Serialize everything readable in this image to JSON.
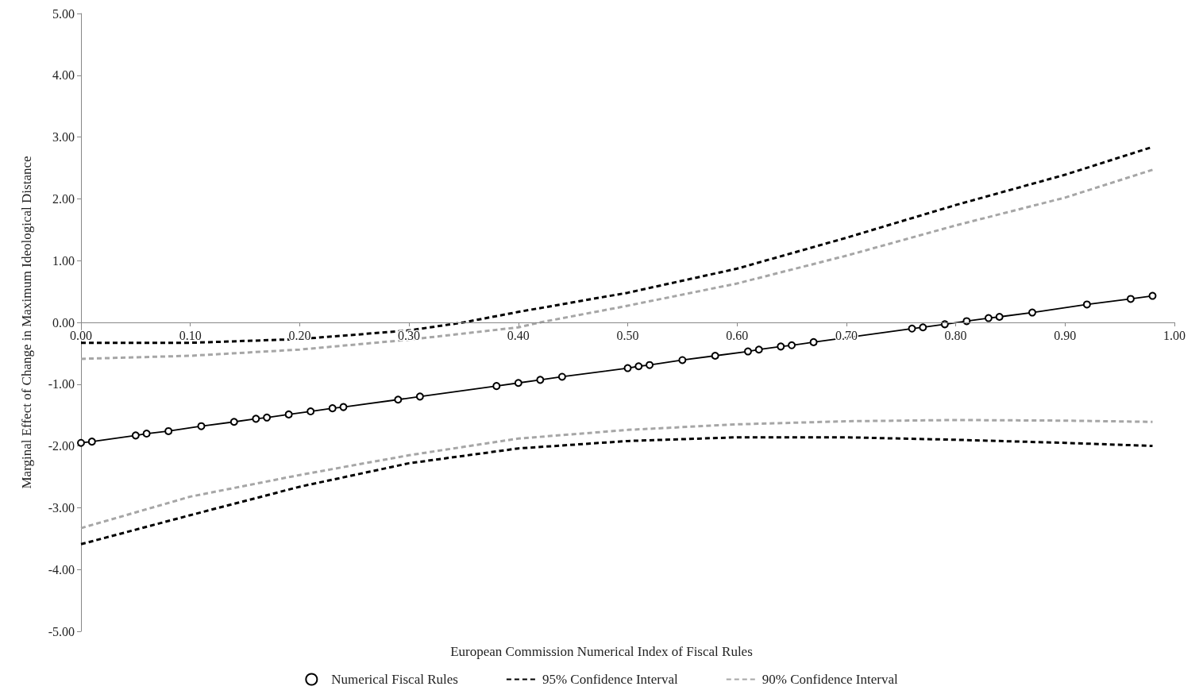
{
  "chart_data": {
    "type": "line",
    "xlabel": "European Commission Numerical Index of Fiscal Rules",
    "ylabel": "Marginal Effect of Change in Maximum Ideological Distance",
    "xlim": [
      0,
      1
    ],
    "xticks": [
      {
        "value": 0,
        "label": "0.00"
      },
      {
        "value": 0.1,
        "label": "0.10"
      },
      {
        "value": 0.2,
        "label": "0.20"
      },
      {
        "value": 0.3,
        "label": "0.30"
      },
      {
        "value": 0.4,
        "label": "0.40"
      },
      {
        "value": 0.5,
        "label": "0.50"
      },
      {
        "value": 0.6,
        "label": "0.60"
      },
      {
        "value": 0.7,
        "label": "0.70"
      },
      {
        "value": 0.8,
        "label": "0.80"
      },
      {
        "value": 0.9,
        "label": "0.90"
      },
      {
        "value": 1,
        "label": "1.00"
      }
    ],
    "ylim": [
      -5,
      5
    ],
    "yticks": [
      {
        "value": -5,
        "label": "-5.00"
      },
      {
        "value": -4,
        "label": "-4.00"
      },
      {
        "value": -3,
        "label": "-3.00"
      },
      {
        "value": -2,
        "label": "-2.00"
      },
      {
        "value": -1,
        "label": "-1.00"
      },
      {
        "value": 0,
        "label": "0.00"
      },
      {
        "value": 1,
        "label": "1.00"
      },
      {
        "value": 2,
        "label": "2.00"
      },
      {
        "value": 3,
        "label": "3.00"
      },
      {
        "value": 4,
        "label": "4.00"
      },
      {
        "value": 5,
        "label": "5.00"
      }
    ],
    "legend": "bottom",
    "series": [
      {
        "name": "Numerical Fiscal Rules",
        "color": "#000000",
        "marker": "circle",
        "line_style": "solid",
        "x": [
          0,
          0.01,
          0.05,
          0.06,
          0.08,
          0.11,
          0.14,
          0.16,
          0.17,
          0.19,
          0.21,
          0.23,
          0.24,
          0.29,
          0.31,
          0.38,
          0.4,
          0.42,
          0.44,
          0.5,
          0.51,
          0.52,
          0.55,
          0.58,
          0.61,
          0.62,
          0.64,
          0.65,
          0.67,
          0.76,
          0.77,
          0.79,
          0.81,
          0.83,
          0.84,
          0.87,
          0.92,
          0.96,
          0.98
        ],
        "values": [
          -1.95,
          -1.93,
          -1.83,
          -1.8,
          -1.76,
          -1.68,
          -1.61,
          -1.56,
          -1.54,
          -1.49,
          -1.44,
          -1.39,
          -1.37,
          -1.25,
          -1.2,
          -1.03,
          -0.98,
          -0.93,
          -0.88,
          -0.74,
          -0.71,
          -0.69,
          -0.61,
          -0.54,
          -0.47,
          -0.44,
          -0.39,
          -0.37,
          -0.32,
          -0.1,
          -0.08,
          -0.03,
          0.02,
          0.07,
          0.09,
          0.16,
          0.29,
          0.38,
          0.43
        ]
      },
      {
        "name": "95% Confidence Interval",
        "color": "#000000",
        "marker": "none",
        "line_style": "dashed",
        "x": [
          0,
          0.1,
          0.2,
          0.3,
          0.35,
          0.4,
          0.5,
          0.6,
          0.7,
          0.8,
          0.9,
          0.98,
          null,
          0,
          0.1,
          0.2,
          0.3,
          0.4,
          0.5,
          0.6,
          0.7,
          0.8,
          0.9,
          0.98
        ],
        "values": [
          -0.33,
          -0.33,
          -0.27,
          -0.13,
          0,
          0.17,
          0.48,
          0.87,
          1.37,
          1.9,
          2.39,
          2.84,
          null,
          -3.59,
          -3.12,
          -2.66,
          -2.28,
          -2.04,
          -1.92,
          -1.86,
          -1.86,
          -1.9,
          -1.95,
          -2.0
        ]
      },
      {
        "name": "90% Confidence Interval",
        "color": "#a6a6a6",
        "marker": "none",
        "line_style": "dashed",
        "x": [
          0,
          0.1,
          0.2,
          0.3,
          0.4,
          0.42,
          0.5,
          0.6,
          0.7,
          0.8,
          0.9,
          0.98,
          null,
          0,
          0.1,
          0.2,
          0.3,
          0.4,
          0.5,
          0.6,
          0.7,
          0.8,
          0.9,
          0.98
        ],
        "values": [
          -0.59,
          -0.54,
          -0.44,
          -0.28,
          -0.08,
          0,
          0.27,
          0.63,
          1.08,
          1.57,
          2.02,
          2.47,
          null,
          -3.33,
          -2.82,
          -2.47,
          -2.15,
          -1.88,
          -1.74,
          -1.65,
          -1.6,
          -1.58,
          -1.59,
          -1.61
        ]
      }
    ]
  }
}
